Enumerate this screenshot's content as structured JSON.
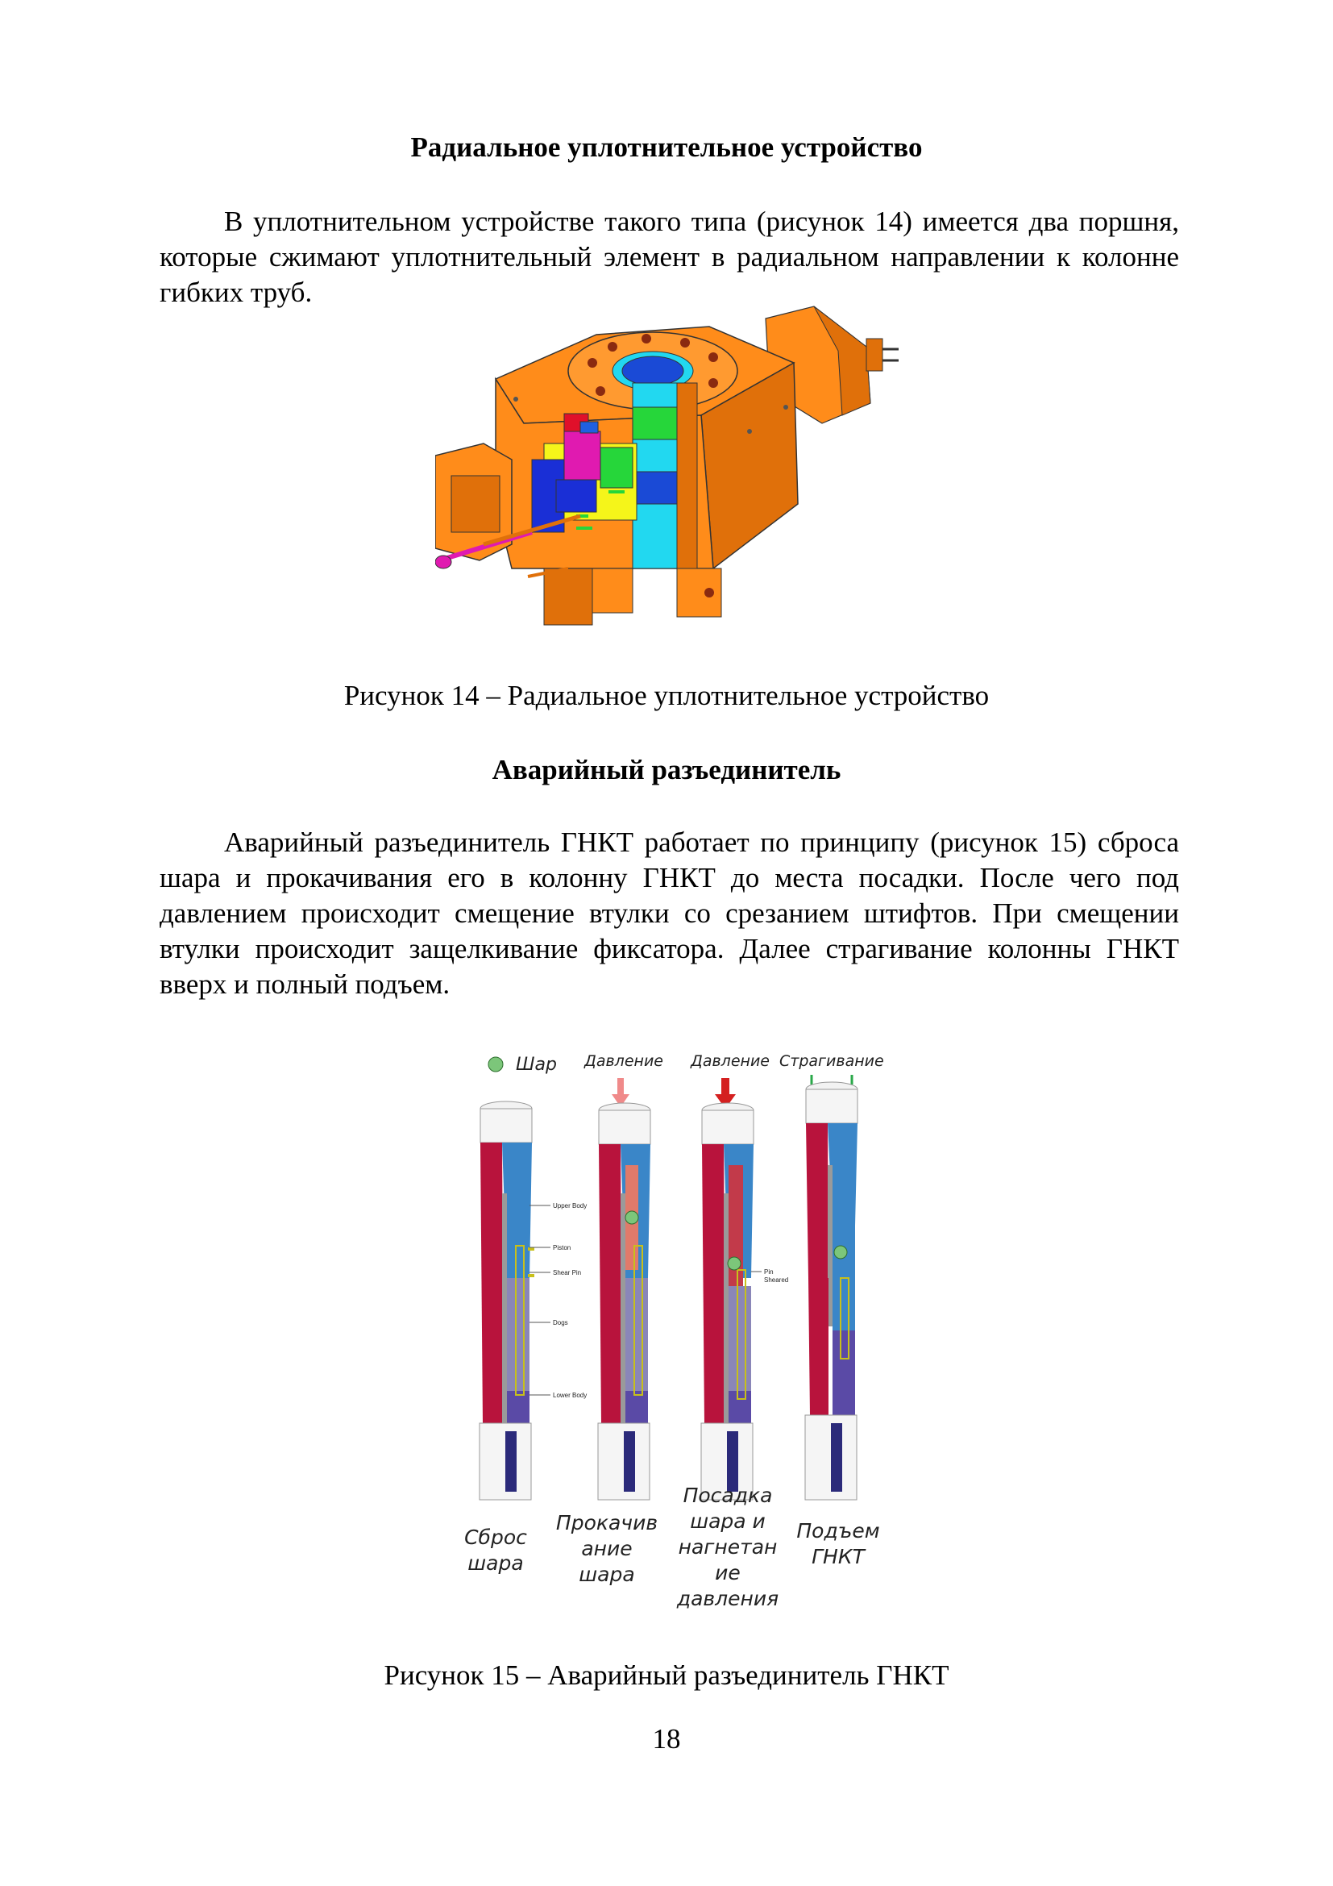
{
  "section1": {
    "title": "Радиальное уплотнительное устройство",
    "paragraph": "В уплотнительном устройстве такого типа (рисунок 14) имеется два поршня, которые сжимают уплотнительный элемент в радиальном направлении к колонне гибких труб."
  },
  "figure14": {
    "caption": "Рисунок 14 – Радиальное уплотнительное устройство",
    "colors": {
      "body": "#ff8c1a",
      "body_dark": "#e0700a",
      "cyan": "#22d8f0",
      "blue": "#1a2fd6",
      "green": "#26d63a",
      "yellow": "#f5f51a",
      "red": "#e0102a",
      "magenta": "#e01ab0"
    }
  },
  "section2": {
    "title": "Аварийный разъединитель",
    "paragraph": "Аварийный разъединитель ГНКТ работает по принципу (рисунок 15) сброса шара и прокачивания его в колонну ГНКТ до места посадки. После чего под давлением происходит смещение втулки со срезанием штифтов. При смещении втулки происходит защелкивание фиксатора. Далее страгивание колонны ГНКТ вверх и полный подъем."
  },
  "figure15": {
    "caption": "Рисунок 15 – Аварийный разъединитель ГНКТ",
    "top_labels": {
      "ball": "Шар",
      "pressure1": "Давление",
      "pressure2": "Давление",
      "pull": "Страгивание"
    },
    "part_labels": {
      "upper_body": "Upper Body",
      "piston": "Piston",
      "shear_pin": "Shear Pin",
      "dogs": "Dogs",
      "lower_body": "Lower Body",
      "pin": "Pin",
      "sheared": "Sheared"
    },
    "steps": [
      {
        "line1": "Сброс",
        "line2": "шара",
        "line3": "",
        "line4": "",
        "line5": ""
      },
      {
        "line1": "Прокачив",
        "line2": "ание",
        "line3": "шара",
        "line4": "",
        "line5": ""
      },
      {
        "line1": "Посадка",
        "line2": "шара и",
        "line3": "нагнетан",
        "line4": "ие",
        "line5": "давления"
      },
      {
        "line1": "Подъем",
        "line2": "ГНКТ",
        "line3": "",
        "line4": "",
        "line5": ""
      }
    ],
    "colors": {
      "red": "#b8133c",
      "blue": "#3a86c8",
      "purple": "#5a4aa6",
      "ball": "#7cc67a",
      "arrow_light": "#f08a8a",
      "arrow_dark": "#d42020"
    }
  },
  "page_number": "18"
}
